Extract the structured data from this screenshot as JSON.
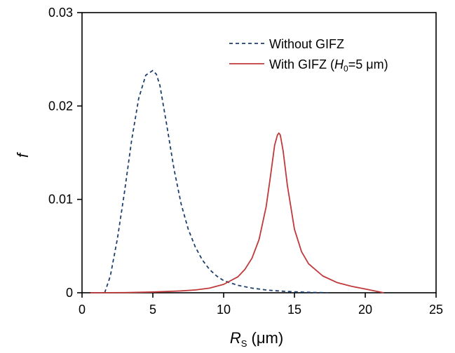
{
  "chart_data": {
    "type": "line",
    "xlabel": {
      "main": "R",
      "sub": "S",
      "unit": " (μm)"
    },
    "ylabel": "f",
    "xlim": [
      0,
      25
    ],
    "ylim": [
      0,
      0.03
    ],
    "xticks": [
      0,
      5,
      10,
      15,
      20,
      25
    ],
    "yticks": [
      0,
      0.01,
      0.02,
      0.03
    ],
    "ytick_labels": [
      "0",
      "0.01",
      "0.02",
      "0.03"
    ],
    "grid": false,
    "legend_position": "top-right",
    "series": [
      {
        "name": "Without GIFZ",
        "color": "#1f3f6e",
        "dash": "dashed",
        "x": [
          1.6,
          2.0,
          2.5,
          3.0,
          3.5,
          4.0,
          4.5,
          5.0,
          5.25,
          5.5,
          6.0,
          6.5,
          7.0,
          7.5,
          8.0,
          8.5,
          9.0,
          9.5,
          10.0,
          11.0,
          12.0,
          13.0,
          14.0,
          15.0,
          16.0,
          17.4
        ],
        "y": [
          0.0,
          0.0018,
          0.0058,
          0.0108,
          0.0163,
          0.0208,
          0.0233,
          0.0238,
          0.0234,
          0.0222,
          0.0178,
          0.0132,
          0.0095,
          0.0068,
          0.0049,
          0.0035,
          0.0025,
          0.0018,
          0.0013,
          0.0008,
          0.0005,
          0.0003,
          0.00018,
          0.0001,
          5e-05,
          0.0
        ]
      },
      {
        "name_parts": {
          "pre": "With GIFZ (",
          "h": "H",
          "hsub": "0",
          "post": "=5 μm)"
        },
        "color": "#c0393b",
        "dash": "solid",
        "x": [
          0.6,
          3.0,
          5.0,
          7.0,
          8.0,
          9.0,
          10.0,
          11.0,
          11.5,
          12.0,
          12.5,
          13.0,
          13.3,
          13.6,
          13.8,
          13.9,
          14.0,
          14.2,
          14.5,
          15.0,
          15.5,
          16.0,
          17.0,
          18.0,
          19.0,
          20.0,
          21.3
        ],
        "y": [
          0.0,
          2e-05,
          8e-05,
          0.0002,
          0.0003,
          0.0005,
          0.0009,
          0.0017,
          0.0025,
          0.0037,
          0.0057,
          0.0092,
          0.0124,
          0.0158,
          0.0169,
          0.0171,
          0.0169,
          0.0152,
          0.0115,
          0.0068,
          0.0044,
          0.0031,
          0.0018,
          0.0011,
          0.0007,
          0.0004,
          0.0
        ]
      }
    ]
  }
}
